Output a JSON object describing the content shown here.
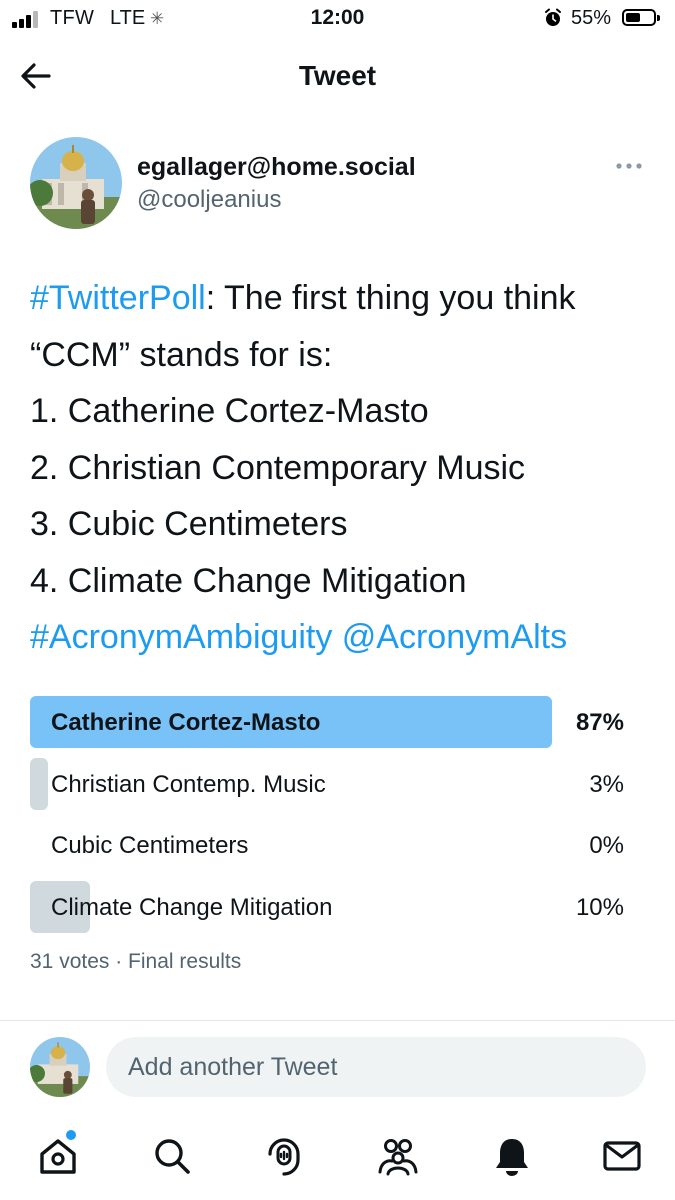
{
  "status_bar": {
    "carrier": "TFW",
    "network": "LTE",
    "time": "12:00",
    "battery_percent": "55%",
    "battery_level": 0.55,
    "icons": [
      "signal-icon",
      "loading-spinner-icon",
      "alarm-icon",
      "battery-icon"
    ]
  },
  "header": {
    "title": "Tweet",
    "back_icon": "back-arrow-icon"
  },
  "tweet": {
    "author_name": "egallager@home.social",
    "author_handle": "@cooljeanius",
    "more_icon": "more-options-icon",
    "text": {
      "hashtag_poll": "#TwitterPoll",
      "line1_rest": ": The first thing you think",
      "line2": "“CCM” stands for is:",
      "line3": "1. Catherine Cortez-Masto",
      "line4": "2. Christian Contemporary Music",
      "line5": "3. Cubic Centimeters",
      "line6": "4. Climate Change Mitigation",
      "hashtag_ambiguity": "#AcronymAmbiguity",
      "mention": "@AcronymAlts"
    }
  },
  "poll": {
    "options": [
      {
        "label": "Catherine Cortez-Masto",
        "percent": "87%",
        "share": 0.87,
        "winner": true
      },
      {
        "label": "Christian Contemp. Music",
        "percent": "3%",
        "share": 0.03,
        "winner": false
      },
      {
        "label": "Cubic Centimeters",
        "percent": "0%",
        "share": 0.0,
        "winner": false
      },
      {
        "label": "Climate Change Mitigation",
        "percent": "10%",
        "share": 0.1,
        "winner": false
      }
    ],
    "summary": "31 votes · Final results"
  },
  "reply": {
    "placeholder": "Add another Tweet"
  },
  "bottom_nav": {
    "items": [
      "home-icon",
      "search-icon",
      "spaces-icon",
      "communities-icon",
      "notifications-icon",
      "messages-icon"
    ],
    "home_has_new_indicator": true
  },
  "colors": {
    "link": "#1d9bf0",
    "poll_winner": "#78c2f7",
    "poll_other": "#cfd9de",
    "secondary_text": "#536471"
  }
}
